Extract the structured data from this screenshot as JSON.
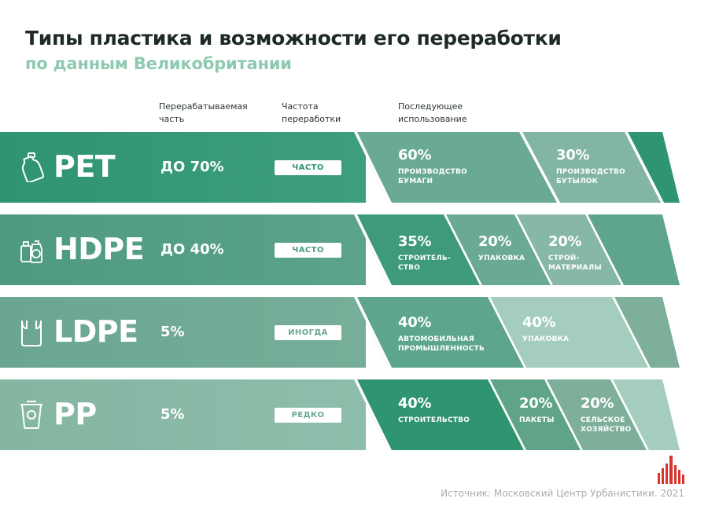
{
  "title": "Типы пластика и возможности его переработки",
  "subtitle": "по данным Великобритании",
  "columns": {
    "recycled_share": "Перерабатываемая\nчасть",
    "frequency": "Частота\nпереработки",
    "subsequent_use": "Последующее\nиспользование"
  },
  "rows": [
    {
      "icon": "bottle-icon",
      "name": "PET",
      "share": "ДО 70%",
      "frequency": "ЧАСТО",
      "color": "#3e9e7e",
      "uses": [
        {
          "pct": "60%",
          "label": "ПРОИЗВОДСТВО\nБУМАГИ"
        },
        {
          "pct": "30%",
          "label": "ПРОИЗВОДСТВО\nБУТЫЛОК"
        }
      ]
    },
    {
      "icon": "containers-icon",
      "name": "HDPE",
      "share": "ДО 40%",
      "frequency": "ЧАСТО",
      "color": "#569f86",
      "uses": [
        {
          "pct": "35%",
          "label": "СТРОИТЕЛЬ-\nСТВО"
        },
        {
          "pct": "20%",
          "label": "УПАКОВКА"
        },
        {
          "pct": "20%",
          "label": "СТРОЙ-\nМАТЕРИАЛЫ"
        }
      ]
    },
    {
      "icon": "bag-icon",
      "name": "LDPE",
      "share": "5%",
      "frequency": "ИНОГДА",
      "color": "#72aa95",
      "uses": [
        {
          "pct": "40%",
          "label": "АВТОМОБИЛЬНАЯ\nПРОМЫШЛЕННОСТЬ"
        },
        {
          "pct": "40%",
          "label": "УПАКОВКА"
        }
      ]
    },
    {
      "icon": "yogurt-cup-icon",
      "name": "PP",
      "share": "5%",
      "frequency": "РЕДКО",
      "color": "#8bbba8",
      "uses": [
        {
          "pct": "40%",
          "label": "СТРОИТЕЛЬСТВО"
        },
        {
          "pct": "20%",
          "label": "ПАКЕТЫ"
        },
        {
          "pct": "20%",
          "label": "СЕЛЬСКОЕ\nХОЗЯЙСТВО"
        }
      ]
    }
  ],
  "source": "Источник: Московский Центр Урбанистики. 2021",
  "logo_icon": "city-skyline-logo-icon"
}
